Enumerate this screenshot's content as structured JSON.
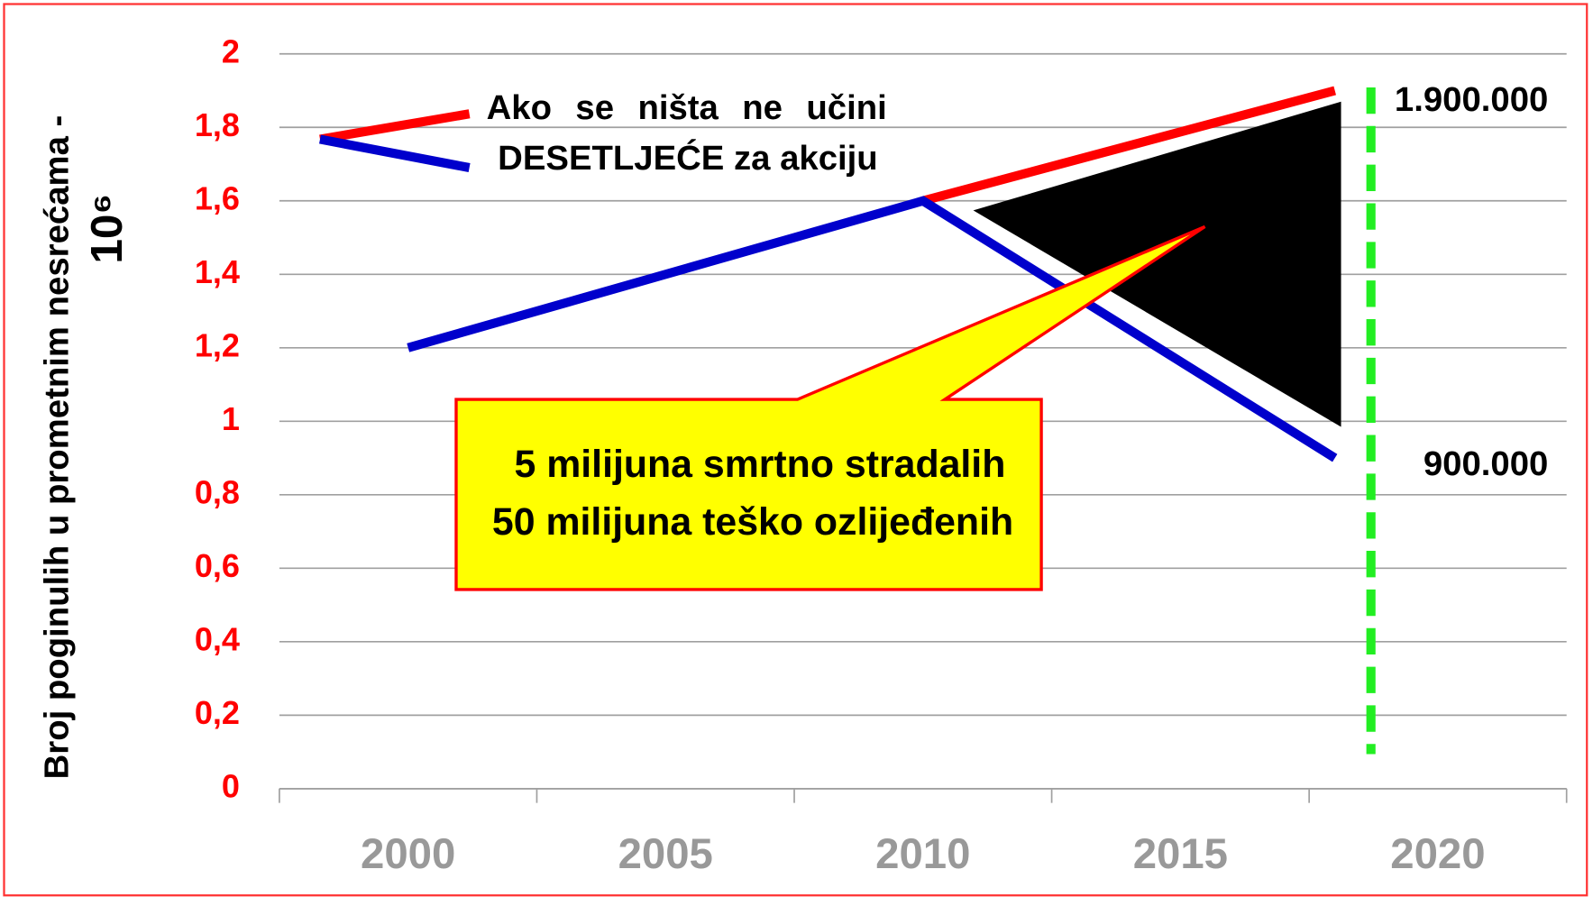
{
  "chart_data": {
    "type": "line",
    "ylabel": "Broj poginulih u prometnim nesrećama -",
    "ylabel_unit": "10⁶",
    "x": [
      2000,
      2010,
      2018
    ],
    "series": [
      {
        "name": "Ako se ništa ne učini",
        "color": "#ff0000",
        "values": [
          null,
          1.6,
          1.9
        ],
        "value_labels": [
          null,
          null,
          "1.900.000"
        ]
      },
      {
        "name": "DESETLJEĆE za akciju",
        "color": "#0000cc",
        "values": [
          1.2,
          1.6,
          0.9
        ],
        "value_labels": [
          null,
          null,
          "900.000"
        ]
      }
    ],
    "xlim": [
      1997.5,
      2022.5
    ],
    "xticks": [
      2000,
      2005,
      2010,
      2015,
      2020
    ],
    "ylim": [
      0,
      2
    ],
    "yticks": [
      0,
      {
        "value": 0.2,
        "label": "0,2"
      },
      {
        "value": 0.4,
        "label": "0,4"
      },
      {
        "value": 0.6,
        "label": "0,6"
      },
      {
        "value": 0.8,
        "label": "0,8"
      },
      1,
      {
        "value": 1.2,
        "label": "1,2"
      },
      {
        "value": 1.4,
        "label": "1,4"
      },
      {
        "value": 1.6,
        "label": "1,6"
      },
      {
        "value": 1.8,
        "label": "1,8"
      },
      2
    ],
    "grid": true,
    "target_line": {
      "x": 2018.7,
      "color": "#22ee22"
    },
    "callout": [
      "5 milijuna smrtno stradalih",
      "50 milijuna teško ozlijeđenih"
    ]
  }
}
